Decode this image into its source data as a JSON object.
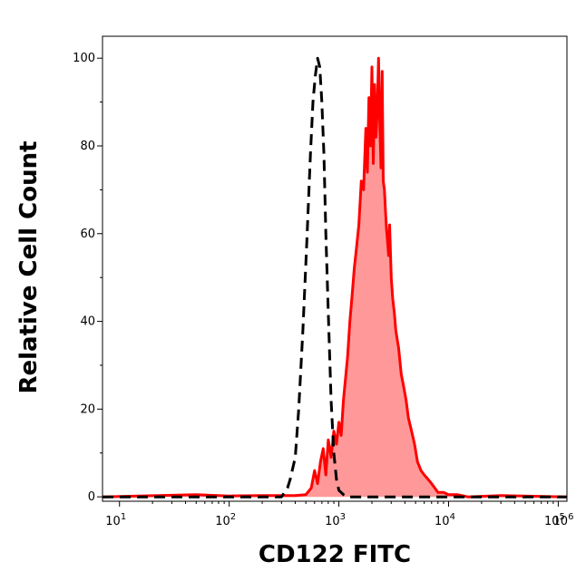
{
  "chart_data": {
    "type": "area",
    "title": "",
    "xlabel": "CD122 FITC",
    "ylabel": "Relative Cell Count",
    "xscale": "log",
    "xlim": [
      7,
      120000
    ],
    "ylim": [
      -1,
      105
    ],
    "grid": false,
    "legend": "none",
    "x_ticks": [
      {
        "base": "10",
        "exp": "1",
        "value": 10
      },
      {
        "base": "10",
        "exp": "2",
        "value": 100
      },
      {
        "base": "10",
        "exp": "3",
        "value": 1000
      },
      {
        "base": "10",
        "exp": "4",
        "value": 10000
      },
      {
        "base": "10",
        "exp": "5",
        "value": 100000
      },
      {
        "base": "10",
        "exp": "6",
        "value": 1000000
      }
    ],
    "y_ticks": [
      {
        "label": "0",
        "value": 0
      },
      {
        "label": "20",
        "value": 20
      },
      {
        "label": "40",
        "value": 40
      },
      {
        "label": "60",
        "value": 60
      },
      {
        "label": "80",
        "value": 80
      },
      {
        "label": "100",
        "value": 100
      }
    ],
    "series": [
      {
        "style": "dashed",
        "color": "#000000",
        "fill": "none",
        "x": [
          7,
          100,
          300,
          340,
          360,
          400,
          430,
          470,
          510,
          550,
          580,
          610,
          640,
          670,
          700,
          730,
          760,
          800,
          850,
          900,
          950,
          1000,
          1100,
          1200,
          1500,
          2000,
          120000
        ],
        "y": [
          0,
          0,
          0,
          2,
          4,
          9,
          20,
          38,
          58,
          78,
          90,
          96,
          100,
          98,
          90,
          78,
          60,
          42,
          22,
          10,
          4,
          1.5,
          0.5,
          0,
          0,
          0,
          0
        ]
      },
      {
        "style": "solid",
        "color": "#ff0000",
        "fill": "#ff9999",
        "x": [
          7,
          50,
          100,
          200,
          400,
          500,
          560,
          600,
          640,
          680,
          720,
          760,
          800,
          850,
          900,
          950,
          1000,
          1050,
          1100,
          1150,
          1200,
          1260,
          1320,
          1380,
          1450,
          1520,
          1600,
          1680,
          1760,
          1820,
          1880,
          1940,
          2000,
          2060,
          2120,
          2180,
          2240,
          2300,
          2360,
          2420,
          2480,
          2540,
          2600,
          2660,
          2720,
          2780,
          2840,
          2900,
          3000,
          3100,
          3200,
          3300,
          3400,
          3500,
          3700,
          3900,
          4100,
          4300,
          4600,
          4900,
          5200,
          5600,
          6000,
          6500,
          7000,
          7500,
          8000,
          9000,
          10000,
          12000,
          15000,
          30000,
          120000
        ],
        "y": [
          0,
          0.5,
          0.2,
          0.3,
          0.3,
          0.5,
          2,
          6,
          3,
          8,
          11,
          5,
          13,
          9,
          15,
          12,
          17,
          14,
          22,
          27,
          32,
          40,
          46,
          52,
          57,
          62,
          72,
          70,
          84,
          74,
          91,
          80,
          98,
          76,
          94,
          82,
          88,
          100,
          85,
          75,
          97,
          72,
          70,
          65,
          61,
          58,
          55,
          62,
          50,
          45,
          42,
          38,
          36,
          34,
          28,
          25,
          22,
          18,
          15,
          12,
          8,
          6,
          5,
          4,
          3,
          2,
          1,
          1,
          0.5,
          0.5,
          0,
          0.3,
          0
        ]
      }
    ]
  }
}
